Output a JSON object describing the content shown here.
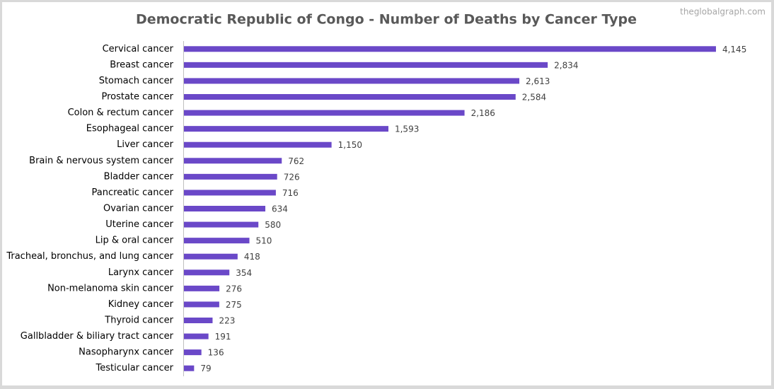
{
  "chart_data": {
    "type": "bar",
    "orientation": "horizontal",
    "title": "Democratic Republic of Congo - Number of Deaths by Cancer Type",
    "watermark": "theglobalgraph.com",
    "categories": [
      "Cervical cancer",
      "Breast cancer",
      "Stomach cancer",
      "Prostate cancer",
      "Colon & rectum cancer",
      "Esophageal cancer",
      "Liver cancer",
      "Brain & nervous system cancer",
      "Bladder cancer",
      "Pancreatic cancer",
      "Ovarian cancer",
      "Uterine cancer",
      "Lip & oral cancer",
      "Tracheal, bronchus, and lung cancer",
      "Larynx cancer",
      "Non-melanoma skin cancer",
      "Kidney cancer",
      "Thyroid cancer",
      "Gallbladder & biliary tract cancer",
      "Nasopharynx cancer",
      "Testicular cancer"
    ],
    "values": [
      4145,
      2834,
      2613,
      2584,
      2186,
      1593,
      1150,
      762,
      726,
      716,
      634,
      580,
      510,
      418,
      354,
      276,
      275,
      223,
      191,
      136,
      79
    ],
    "value_labels": [
      "4,145",
      "2,834",
      "2,613",
      "2,584",
      "2,186",
      "1,593",
      "1,150",
      "762",
      "726",
      "716",
      "634",
      "580",
      "510",
      "418",
      "354",
      "276",
      "275",
      "223",
      "191",
      "136",
      "79"
    ],
    "color": "#6a48c8",
    "xlim": [
      0,
      4520
    ]
  }
}
